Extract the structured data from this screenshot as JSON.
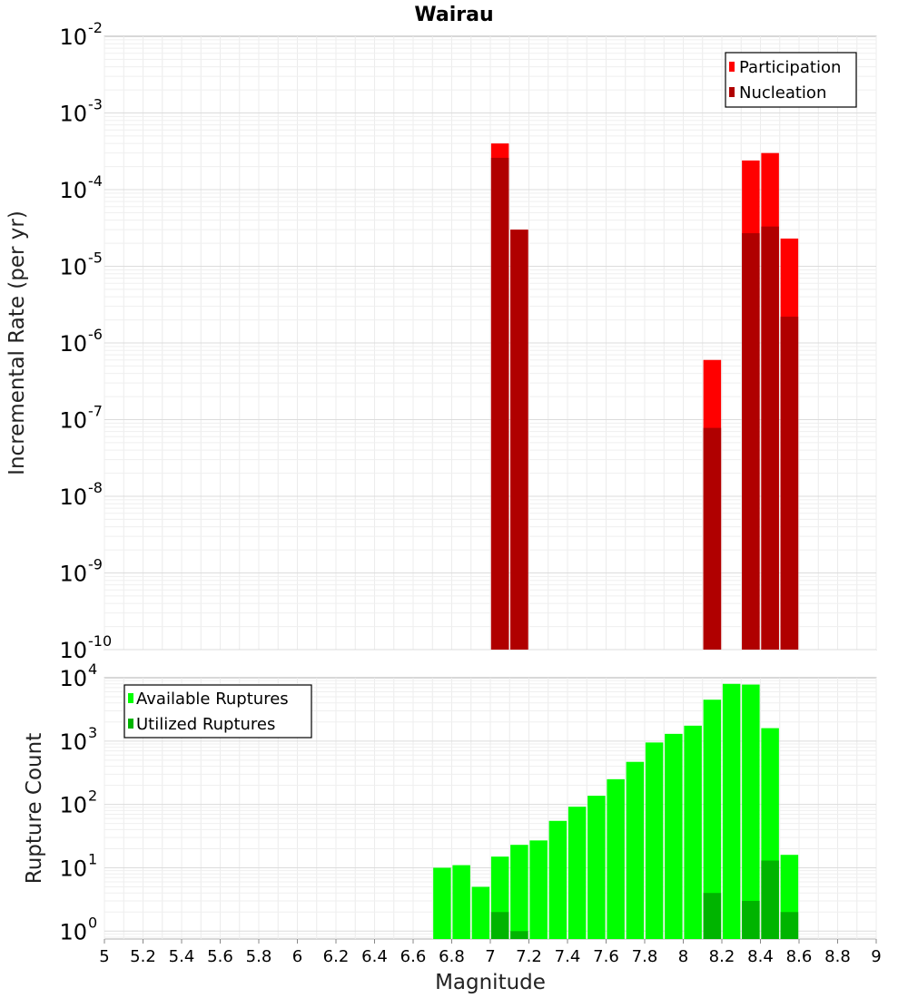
{
  "chart_data": [
    {
      "type": "bar",
      "title": "Wairau",
      "xlabel": "",
      "ylabel": "Incremental Rate (per yr)",
      "yscale": "log",
      "ylim": [
        1e-10,
        0.01
      ],
      "xlim": [
        5,
        9
      ],
      "y_ticks": [
        {
          "base": "10",
          "exp": "-10"
        },
        {
          "base": "10",
          "exp": "-9"
        },
        {
          "base": "10",
          "exp": "-8"
        },
        {
          "base": "10",
          "exp": "-7"
        },
        {
          "base": "10",
          "exp": "-6"
        },
        {
          "base": "10",
          "exp": "-5"
        },
        {
          "base": "10",
          "exp": "-4"
        },
        {
          "base": "10",
          "exp": "-3"
        },
        {
          "base": "10",
          "exp": "-2"
        }
      ],
      "legend": {
        "position": "top-right",
        "entries": [
          "Participation",
          "Nucleation"
        ]
      },
      "series": [
        {
          "name": "Participation",
          "color": "#ff0000",
          "x": [
            7.05,
            7.15,
            8.15,
            8.35,
            8.45,
            8.55
          ],
          "values": [
            0.0004,
            3e-05,
            6e-07,
            0.00024,
            0.0003,
            2.3e-05
          ]
        },
        {
          "name": "Nucleation",
          "color": "#b00000",
          "x": [
            7.05,
            7.15,
            8.15,
            8.35,
            8.45,
            8.55
          ],
          "values": [
            0.00026,
            3e-05,
            7.8e-08,
            2.7e-05,
            3.3e-05,
            2.2e-06
          ]
        }
      ]
    },
    {
      "type": "bar",
      "title": "",
      "xlabel": "Magnitude",
      "ylabel": "Rupture Count",
      "yscale": "log",
      "ylim": [
        0.75,
        10000
      ],
      "xlim": [
        5,
        9
      ],
      "x_ticks": [
        "5",
        "5.2",
        "5.4",
        "5.6",
        "5.8",
        "6",
        "6.2",
        "6.4",
        "6.6",
        "6.8",
        "7",
        "7.2",
        "7.4",
        "7.6",
        "7.8",
        "8",
        "8.2",
        "8.4",
        "8.6",
        "8.8",
        "9"
      ],
      "y_ticks": [
        {
          "base": "10",
          "exp": "0"
        },
        {
          "base": "10",
          "exp": "1"
        },
        {
          "base": "10",
          "exp": "2"
        },
        {
          "base": "10",
          "exp": "3"
        },
        {
          "base": "10",
          "exp": "4"
        }
      ],
      "legend": {
        "position": "top-left",
        "entries": [
          "Available Ruptures",
          "Utilized Ruptures"
        ]
      },
      "series": [
        {
          "name": "Available Ruptures",
          "color": "#00ff00",
          "x": [
            6.75,
            6.85,
            6.95,
            7.05,
            7.15,
            7.25,
            7.35,
            7.45,
            7.55,
            7.65,
            7.75,
            7.85,
            7.95,
            8.05,
            8.15,
            8.25,
            8.35,
            8.45,
            8.55
          ],
          "values": [
            10,
            11,
            5,
            15,
            23,
            27,
            55,
            92,
            137,
            250,
            470,
            950,
            1300,
            1750,
            4500,
            8000,
            7800,
            1600,
            16
          ]
        },
        {
          "name": "Utilized Ruptures",
          "color": "#00b400",
          "x": [
            7.05,
            7.15,
            8.15,
            8.35,
            8.45,
            8.55
          ],
          "values": [
            2,
            1,
            4,
            3,
            13,
            2
          ]
        }
      ]
    }
  ]
}
